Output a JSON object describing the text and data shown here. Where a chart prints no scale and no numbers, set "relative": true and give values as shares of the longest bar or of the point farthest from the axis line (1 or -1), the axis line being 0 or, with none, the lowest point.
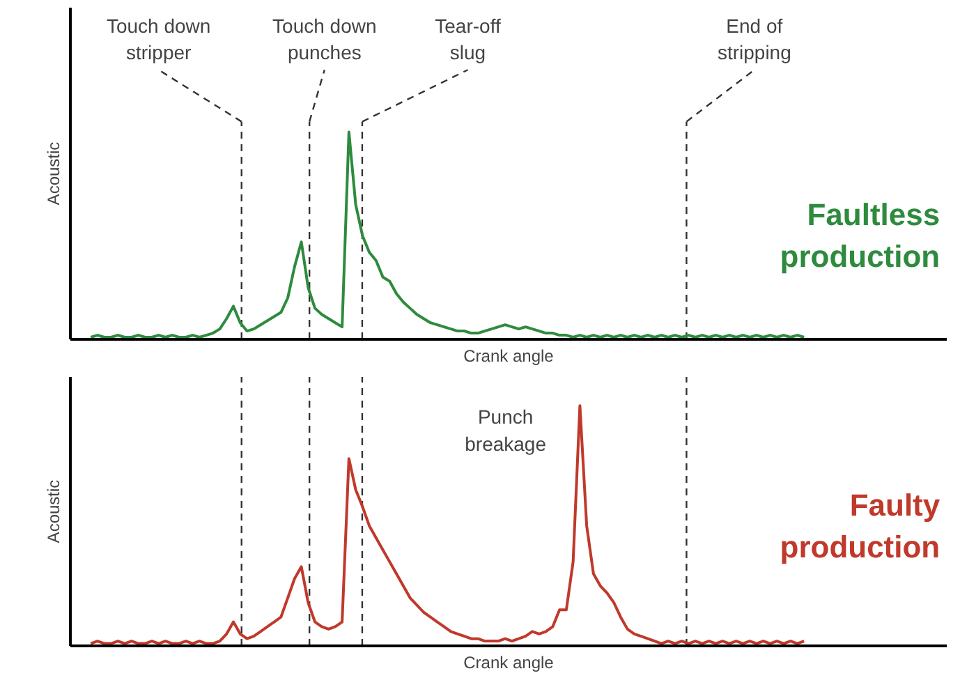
{
  "chart_data": [
    {
      "type": "line",
      "relative": true,
      "ylabel": "Acoustic",
      "xlabel": "Crank angle",
      "legend": false,
      "categories": [
        null,
        null,
        null,
        null,
        null,
        null,
        null,
        null,
        null,
        null,
        null,
        null,
        null,
        null,
        null,
        null,
        null,
        null,
        null,
        null,
        null,
        null,
        null,
        null,
        null,
        null,
        null,
        null,
        null,
        null,
        null,
        null,
        null,
        null,
        null,
        null,
        null,
        null,
        null,
        null,
        null,
        null,
        null,
        null,
        null,
        null,
        null,
        null,
        null,
        null,
        null,
        null,
        null,
        null,
        null,
        null,
        null,
        null,
        null,
        null,
        null,
        null,
        null,
        null,
        null,
        null,
        null,
        null,
        null,
        null,
        null,
        null,
        null,
        null,
        null,
        null,
        null,
        null,
        null,
        null,
        null,
        null,
        null,
        null,
        null,
        null,
        null,
        null,
        null,
        null,
        null,
        null,
        null,
        null,
        null,
        null,
        null,
        null,
        null,
        null,
        null,
        null,
        null,
        null,
        null,
        null
      ],
      "series": [
        {
          "name": "Faultless production",
          "color": "#2e8b3e",
          "values": [
            0.01,
            0.02,
            0.01,
            0.01,
            0.02,
            0.01,
            0.01,
            0.02,
            0.01,
            0.01,
            0.02,
            0.01,
            0.02,
            0.01,
            0.01,
            0.02,
            0.01,
            0.02,
            0.03,
            0.05,
            0.1,
            0.16,
            0.08,
            0.04,
            0.05,
            0.07,
            0.09,
            0.11,
            0.13,
            0.2,
            0.35,
            0.47,
            0.25,
            0.15,
            0.12,
            0.1,
            0.08,
            0.06,
            1.0,
            0.65,
            0.5,
            0.42,
            0.38,
            0.3,
            0.28,
            0.22,
            0.18,
            0.15,
            0.12,
            0.1,
            0.08,
            0.07,
            0.06,
            0.05,
            0.04,
            0.04,
            0.03,
            0.03,
            0.04,
            0.05,
            0.06,
            0.07,
            0.06,
            0.05,
            0.06,
            0.05,
            0.04,
            0.03,
            0.03,
            0.02,
            0.02,
            0.01,
            0.02,
            0.01,
            0.02,
            0.01,
            0.02,
            0.01,
            0.02,
            0.01,
            0.02,
            0.01,
            0.02,
            0.01,
            0.02,
            0.01,
            0.02,
            0.01,
            0.02,
            0.01,
            0.02,
            0.01,
            0.02,
            0.01,
            0.02,
            0.01,
            0.02,
            0.01,
            0.02,
            0.01,
            0.02,
            0.01,
            0.02,
            0.01,
            0.02,
            0.01
          ]
        }
      ],
      "annotations": [
        "Touch down stripper",
        "Touch down punches",
        "Tear-off slug",
        "End of stripping"
      ]
    },
    {
      "type": "line",
      "relative": true,
      "ylabel": "Acoustic",
      "xlabel": "Crank angle",
      "legend": false,
      "categories": [
        null,
        null,
        null,
        null,
        null,
        null,
        null,
        null,
        null,
        null,
        null,
        null,
        null,
        null,
        null,
        null,
        null,
        null,
        null,
        null,
        null,
        null,
        null,
        null,
        null,
        null,
        null,
        null,
        null,
        null,
        null,
        null,
        null,
        null,
        null,
        null,
        null,
        null,
        null,
        null,
        null,
        null,
        null,
        null,
        null,
        null,
        null,
        null,
        null,
        null,
        null,
        null,
        null,
        null,
        null,
        null,
        null,
        null,
        null,
        null,
        null,
        null,
        null,
        null,
        null,
        null,
        null,
        null,
        null,
        null,
        null,
        null,
        null,
        null,
        null,
        null,
        null,
        null,
        null,
        null,
        null,
        null,
        null,
        null,
        null,
        null,
        null,
        null,
        null,
        null,
        null,
        null,
        null,
        null,
        null,
        null,
        null,
        null,
        null,
        null,
        null,
        null,
        null,
        null,
        null,
        null
      ],
      "series": [
        {
          "name": "Faulty production",
          "color": "#c0392b",
          "values": [
            0.01,
            0.02,
            0.01,
            0.01,
            0.02,
            0.01,
            0.02,
            0.01,
            0.01,
            0.02,
            0.01,
            0.02,
            0.01,
            0.01,
            0.02,
            0.01,
            0.02,
            0.01,
            0.01,
            0.02,
            0.05,
            0.1,
            0.05,
            0.03,
            0.04,
            0.06,
            0.08,
            0.1,
            0.12,
            0.2,
            0.28,
            0.33,
            0.18,
            0.1,
            0.08,
            0.07,
            0.08,
            0.1,
            0.78,
            0.65,
            0.58,
            0.5,
            0.45,
            0.4,
            0.35,
            0.3,
            0.25,
            0.2,
            0.17,
            0.14,
            0.12,
            0.1,
            0.08,
            0.06,
            0.05,
            0.04,
            0.03,
            0.03,
            0.02,
            0.02,
            0.02,
            0.03,
            0.02,
            0.03,
            0.04,
            0.06,
            0.05,
            0.06,
            0.08,
            0.15,
            0.15,
            0.35,
            1.0,
            0.5,
            0.3,
            0.25,
            0.22,
            0.18,
            0.12,
            0.07,
            0.05,
            0.04,
            0.03,
            0.02,
            0.01,
            0.02,
            0.01,
            0.02,
            0.01,
            0.02,
            0.01,
            0.02,
            0.01,
            0.02,
            0.01,
            0.02,
            0.01,
            0.02,
            0.01,
            0.02,
            0.01,
            0.02,
            0.01,
            0.02,
            0.01,
            0.02
          ]
        }
      ],
      "annotations": [
        "Punch breakage"
      ]
    }
  ]
}
